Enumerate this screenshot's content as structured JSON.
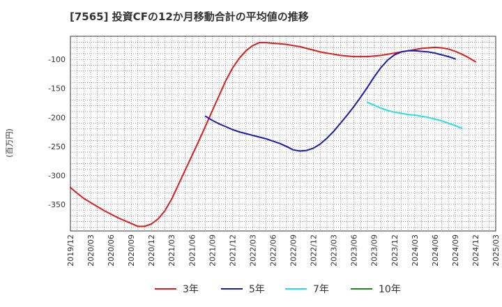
{
  "chart_data": {
    "type": "line",
    "title": "[7565]  投資CFの12か月移動合計の平均値の推移",
    "ylabel": "(百万円)",
    "x_start": "2019-12",
    "x_step_months": 1,
    "x_ticks": [
      "2019/12",
      "2020/03",
      "2020/06",
      "2020/09",
      "2020/12",
      "2021/03",
      "2021/06",
      "2021/09",
      "2021/12",
      "2022/03",
      "2022/06",
      "2022/09",
      "2022/12",
      "2023/03",
      "2023/06",
      "2023/09",
      "2023/12",
      "2024/03",
      "2024/06",
      "2024/09",
      "2024/12",
      "2025/03"
    ],
    "ylim": [
      -396,
      -60
    ],
    "y_ticks": [
      -100,
      -150,
      -200,
      -250,
      -300,
      -350
    ],
    "grid": true,
    "legend_position": "bottom",
    "series": [
      {
        "name": "3年",
        "color": "#dd1c1c",
        "start": "2019-12",
        "values": [
          -321,
          -331,
          -340,
          -347,
          -354,
          -361,
          -367,
          -373,
          -378,
          -383,
          -388,
          -388,
          -384,
          -375,
          -361,
          -341,
          -316,
          -291,
          -266,
          -241,
          -215,
          -189,
          -163,
          -137,
          -115,
          -98,
          -85,
          -76,
          -71,
          -71,
          -72,
          -73,
          -74,
          -76,
          -78,
          -81,
          -84,
          -87,
          -89,
          -91,
          -93,
          -94,
          -95,
          -95,
          -95,
          -94,
          -93,
          -91,
          -89,
          -87,
          -85,
          -83,
          -81,
          -80,
          -79,
          -80,
          -82,
          -86,
          -91,
          -97,
          -104
        ]
      },
      {
        "name": "5年",
        "color": "#1a1ab8",
        "start": "2021-08",
        "values": [
          -198,
          -205,
          -211,
          -216,
          -221,
          -225,
          -228,
          -231,
          -234,
          -237,
          -241,
          -245,
          -250,
          -256,
          -258,
          -257,
          -253,
          -246,
          -236,
          -224,
          -210,
          -196,
          -181,
          -165,
          -148,
          -130,
          -114,
          -101,
          -92,
          -87,
          -85,
          -85,
          -86,
          -87,
          -89,
          -92,
          -95,
          -99
        ]
      },
      {
        "name": "7年",
        "color": "#22e0e8",
        "start": "2023-08",
        "values": [
          -174,
          -179,
          -184,
          -188,
          -191,
          -193,
          -195,
          -196,
          -198,
          -200,
          -203,
          -206,
          -210,
          -214,
          -219
        ]
      },
      {
        "name": "10年",
        "color": "#1a8a1a",
        "start": "2024-09",
        "values": []
      }
    ]
  }
}
